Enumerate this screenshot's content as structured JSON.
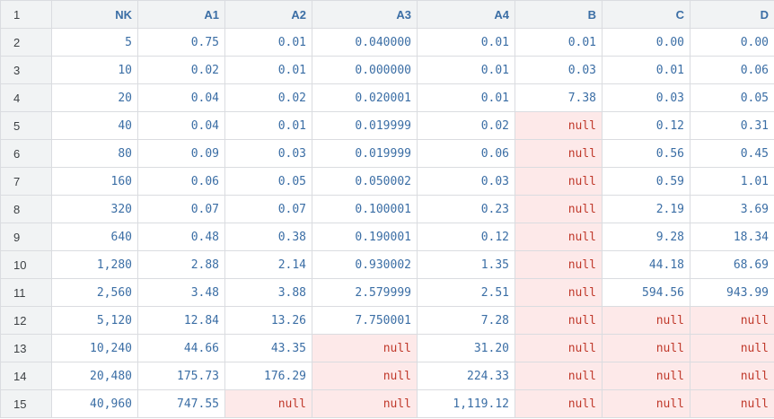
{
  "columns": [
    "NK",
    "A1",
    "A2",
    "A3",
    "A4",
    "B",
    "C",
    "D"
  ],
  "header_row_number": "1",
  "rows": [
    {
      "n": "2",
      "cells": [
        "5",
        "0.75",
        "0.01",
        "0.040000",
        "0.01",
        "0.01",
        "0.00",
        "0.00"
      ]
    },
    {
      "n": "3",
      "cells": [
        "10",
        "0.02",
        "0.01",
        "0.000000",
        "0.01",
        "0.03",
        "0.01",
        "0.06"
      ]
    },
    {
      "n": "4",
      "cells": [
        "20",
        "0.04",
        "0.02",
        "0.020001",
        "0.01",
        "7.38",
        "0.03",
        "0.05"
      ]
    },
    {
      "n": "5",
      "cells": [
        "40",
        "0.04",
        "0.01",
        "0.019999",
        "0.02",
        "null",
        "0.12",
        "0.31"
      ]
    },
    {
      "n": "6",
      "cells": [
        "80",
        "0.09",
        "0.03",
        "0.019999",
        "0.06",
        "null",
        "0.56",
        "0.45"
      ]
    },
    {
      "n": "7",
      "cells": [
        "160",
        "0.06",
        "0.05",
        "0.050002",
        "0.03",
        "null",
        "0.59",
        "1.01"
      ]
    },
    {
      "n": "8",
      "cells": [
        "320",
        "0.07",
        "0.07",
        "0.100001",
        "0.23",
        "null",
        "2.19",
        "3.69"
      ]
    },
    {
      "n": "9",
      "cells": [
        "640",
        "0.48",
        "0.38",
        "0.190001",
        "0.12",
        "null",
        "9.28",
        "18.34"
      ]
    },
    {
      "n": "10",
      "cells": [
        "1,280",
        "2.88",
        "2.14",
        "0.930002",
        "1.35",
        "null",
        "44.18",
        "68.69"
      ]
    },
    {
      "n": "11",
      "cells": [
        "2,560",
        "3.48",
        "3.88",
        "2.579999",
        "2.51",
        "null",
        "594.56",
        "943.99"
      ]
    },
    {
      "n": "12",
      "cells": [
        "5,120",
        "12.84",
        "13.26",
        "7.750001",
        "7.28",
        "null",
        "null",
        "null"
      ]
    },
    {
      "n": "13",
      "cells": [
        "10,240",
        "44.66",
        "43.35",
        "null",
        "31.20",
        "null",
        "null",
        "null"
      ]
    },
    {
      "n": "14",
      "cells": [
        "20,480",
        "175.73",
        "176.29",
        "null",
        "224.33",
        "null",
        "null",
        "null"
      ]
    },
    {
      "n": "15",
      "cells": [
        "40,960",
        "747.55",
        "null",
        "null",
        "1,119.12",
        "null",
        "null",
        "null"
      ]
    }
  ],
  "colors": {
    "value_text": "#3b6ea5",
    "null_bg": "#fde9e9",
    "null_text": "#c0392b",
    "header_bg": "#f1f3f4"
  }
}
